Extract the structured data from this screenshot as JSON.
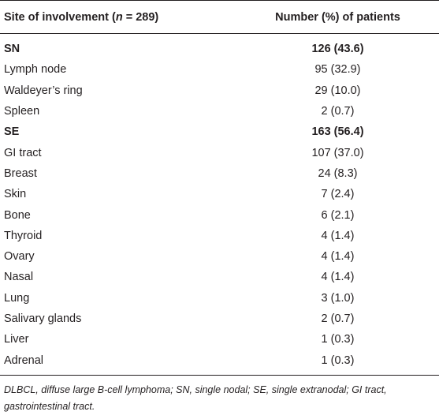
{
  "table": {
    "header": {
      "col1_prefix": "Site of involvement (",
      "col1_n": "n",
      "col1_suffix": " = 289)",
      "col2": "Number (%) of patients"
    },
    "rows": [
      {
        "site": "SN",
        "value": "126 (43.6)",
        "bold": true
      },
      {
        "site": "Lymph node",
        "value": "95 (32.9)",
        "bold": false
      },
      {
        "site": "Waldeyer’s ring",
        "value": "29 (10.0)",
        "bold": false
      },
      {
        "site": "Spleen",
        "value": "2 (0.7)",
        "bold": false
      },
      {
        "site": "SE",
        "value": "163 (56.4)",
        "bold": true
      },
      {
        "site": "GI tract",
        "value": "107 (37.0)",
        "bold": false
      },
      {
        "site": "Breast",
        "value": "24 (8.3)",
        "bold": false
      },
      {
        "site": "Skin",
        "value": "7 (2.4)",
        "bold": false
      },
      {
        "site": "Bone",
        "value": "6 (2.1)",
        "bold": false
      },
      {
        "site": "Thyroid",
        "value": "4 (1.4)",
        "bold": false
      },
      {
        "site": "Ovary",
        "value": "4 (1.4)",
        "bold": false
      },
      {
        "site": "Nasal",
        "value": "4 (1.4)",
        "bold": false
      },
      {
        "site": "Lung",
        "value": "3 (1.0)",
        "bold": false
      },
      {
        "site": "Salivary glands",
        "value": "2 (0.7)",
        "bold": false
      },
      {
        "site": "Liver",
        "value": "1 (0.3)",
        "bold": false
      },
      {
        "site": "Adrenal",
        "value": "1 (0.3)",
        "bold": false
      }
    ]
  },
  "footnote": "DLBCL, diffuse large B-cell lymphoma; SN, single nodal; SE, single extranodal; GI tract, gastrointestinal tract."
}
